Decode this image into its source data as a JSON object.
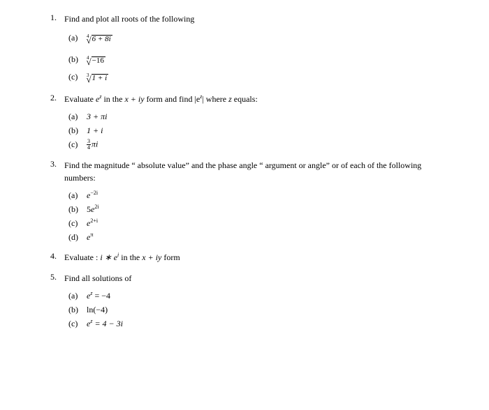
{
  "page": {
    "background_color": "#ffffff",
    "text_color": "#000000",
    "font_family": "Times New Roman",
    "base_font_size_pt": 10
  },
  "problems": [
    {
      "number": "1.",
      "stem": "Find and plot all roots of the following",
      "subs": [
        {
          "label": "(a)",
          "expr_type": "nthroot",
          "index": "4",
          "radicand": "6 + 8i",
          "raw": "⁴√(6 + 8i)"
        },
        {
          "label": "(b)",
          "expr_type": "nthroot",
          "index": "4",
          "radicand": "−16",
          "raw": "⁴√(−16)"
        },
        {
          "label": "(c)",
          "expr_type": "nthroot",
          "index": "3",
          "radicand": "1 + i",
          "raw": "³√(1 + i)"
        }
      ]
    },
    {
      "number": "2.",
      "stem_parts": {
        "a": "Evaluate ",
        "b": " in the ",
        "c": " form and find ",
        "d": " where ",
        "e": " equals:"
      },
      "stem_math": {
        "ez": "e",
        "ez_sup": "z",
        "xiy": "x + iy",
        "mod": "|e",
        "mod_sup": "z",
        "mod_close": "|",
        "zvar": "z"
      },
      "subs": [
        {
          "label": "(a)",
          "expr": "3 + πi"
        },
        {
          "label": "(b)",
          "expr": "1 + i"
        },
        {
          "label": "(c)",
          "expr_frac_num": "3",
          "expr_frac_den": "4",
          "expr_rest": "πi"
        }
      ]
    },
    {
      "number": "3.",
      "stem": "Find the magnitude “ absolute value” and the phase angle “ argument or angle” or of each of the following numbers:",
      "subs": [
        {
          "label": "(a)",
          "base": "e",
          "sup": "−2i"
        },
        {
          "label": "(b)",
          "coef": "5",
          "base": "e",
          "sup": "2i"
        },
        {
          "label": "(c)",
          "base": "e",
          "sup": "2+i"
        },
        {
          "label": "(d)",
          "base": "e",
          "sup": "π"
        }
      ]
    },
    {
      "number": "4.",
      "stem_parts": {
        "a": "Evaluate : ",
        "b": " in the ",
        "c": " form"
      },
      "stem_math": {
        "expr": "i ∗ e",
        "expr_sup": "i",
        "xiy": "x + iy"
      }
    },
    {
      "number": "5.",
      "stem": "Find all solutions of",
      "subs": [
        {
          "label": "(a)",
          "lhs_base": "e",
          "lhs_sup": "z",
          "rest": " = −4"
        },
        {
          "label": "(b)",
          "expr": "ln(−4)"
        },
        {
          "label": "(c)",
          "lhs_base": "e",
          "lhs_sup": "z",
          "rest": " = 4 − 3i"
        }
      ]
    }
  ]
}
